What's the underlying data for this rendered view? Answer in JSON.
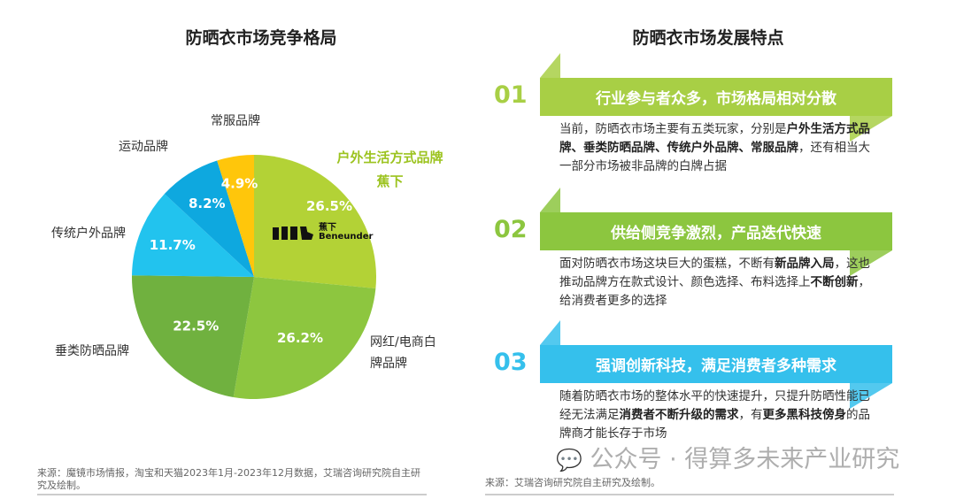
{
  "left": {
    "title": "防晒衣市场竞争格局",
    "source": "来源：魔镜市场情报，淘宝和天猫2023年1月-2023年12月数据，艾瑞咨询研究院自主研究及绘制。",
    "highlight_label": "户外生活方式品牌",
    "highlight_brand": "蕉下",
    "logo_text": "蕉下 Beneunder"
  },
  "chart_data": {
    "type": "pie",
    "title": "防晒衣市场竞争格局",
    "start": "12 o'clock, clockwise",
    "slices": [
      {
        "label": "户外生活方式品牌",
        "value": 26.5,
        "display": "26.5%",
        "color": "#b3d236"
      },
      {
        "label": "网红/电商白牌品牌",
        "value": 26.2,
        "display": "26.2%",
        "color": "#8dc63f"
      },
      {
        "label": "垂类防晒品牌",
        "value": 22.5,
        "display": "22.5%",
        "color": "#70b13f"
      },
      {
        "label": "传统户外品牌",
        "value": 11.7,
        "display": "11.7%",
        "color": "#22c3ee"
      },
      {
        "label": "运动品牌",
        "value": 8.2,
        "display": "8.2%",
        "color": "#0ea8df"
      },
      {
        "label": "常服品牌",
        "value": 4.9,
        "display": "4.9%",
        "color": "#ffc60b"
      }
    ]
  },
  "right": {
    "title": "防晒衣市场发展特点",
    "source": "来源：艾瑞咨询研究院自主研究及绘制。",
    "watermark": "公众号 · 得算多未来产业研究",
    "items": [
      {
        "num": "01",
        "heading": "行业参与者众多，市场格局相对分散",
        "color": "#a8cf45",
        "parts": [
          [
            "当前，防晒衣市场主要有五类玩家，分别是",
            false
          ],
          [
            "户外生活方式品牌、垂类防晒品牌、传统户外品牌、常服品牌",
            true
          ],
          [
            "，还有相当大一部分市场被非品牌的白牌占据",
            false
          ]
        ]
      },
      {
        "num": "02",
        "heading": "供给侧竞争激烈，产品迭代快速",
        "color": "#8cc63f",
        "parts": [
          [
            "面对防晒衣市场这块巨大的蛋糕，不断有",
            false
          ],
          [
            "新品牌入局",
            true
          ],
          [
            "，这也推动品牌方在款式设计、颜色选择、布料选择上",
            false
          ],
          [
            "不断创新",
            true
          ],
          [
            "，给消费者更多的选择",
            false
          ]
        ]
      },
      {
        "num": "03",
        "heading": "强调创新科技，满足消费者多种需求",
        "color": "#35c0ec",
        "parts": [
          [
            "随着防晒衣市场的整体水平的快速提升，只提升防晒性能已经无法满足",
            false
          ],
          [
            "消费者不断升级的需求",
            true
          ],
          [
            "，有",
            false
          ],
          [
            "更多黑科技傍身",
            true
          ],
          [
            "的品牌商才能长存于市场",
            false
          ]
        ]
      }
    ]
  }
}
